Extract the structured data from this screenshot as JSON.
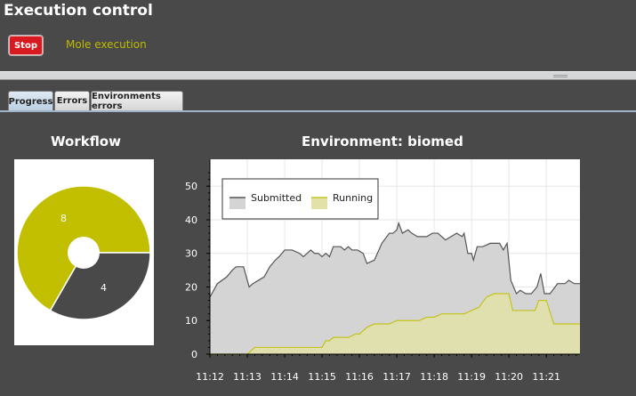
{
  "header": {
    "title": "Execution control"
  },
  "controls": {
    "stop_label": "Stop",
    "status": "Mole execution"
  },
  "tabs": [
    {
      "label": "Progress",
      "active": true
    },
    {
      "label": "Errors",
      "active": false
    },
    {
      "label": "Environments errors",
      "active": false
    }
  ],
  "workflow": {
    "title": "Workflow"
  },
  "environment": {
    "title": "Environment: biomed"
  },
  "colors": {
    "background": "#4a4949",
    "stop": "#d71920",
    "status_text": "#bdbb00",
    "submitted_fill": "#d4d4d4",
    "submitted_line": "#555555",
    "running_fill": "#e2e2a8",
    "running_line": "#c3c31c",
    "pie_yellow": "#c1bf00",
    "pie_dark": "#4a4949"
  },
  "chart_data": [
    {
      "type": "pie",
      "title": "Workflow",
      "labels": [
        "8",
        "4"
      ],
      "values": [
        8,
        4
      ],
      "colors": [
        "#c1bf00",
        "#4a4949"
      ],
      "donut": true
    },
    {
      "type": "area",
      "title": "Environment: biomed",
      "x_ticks": [
        "11:12",
        "11:13",
        "11:14",
        "11:15",
        "11:16",
        "11:17",
        "11:18",
        "11:19",
        "11:20",
        "11:21"
      ],
      "xlim": [
        0,
        9.9
      ],
      "ylim": [
        0,
        58
      ],
      "y_ticks": [
        0,
        10,
        20,
        30,
        40,
        50
      ],
      "grid": true,
      "legend": "top-left",
      "series": [
        {
          "name": "Submitted",
          "color": "#555555",
          "fill": "#d4d4d4",
          "x": [
            0,
            0.2,
            0.45,
            0.6,
            0.7,
            0.8,
            0.9,
            1.0,
            1.05,
            1.15,
            1.3,
            1.45,
            1.6,
            1.75,
            1.85,
            2.0,
            2.1,
            2.2,
            2.4,
            2.5,
            2.6,
            2.7,
            2.8,
            2.9,
            3.0,
            3.1,
            3.2,
            3.3,
            3.4,
            3.5,
            3.6,
            3.7,
            3.8,
            3.95,
            4.1,
            4.2,
            4.4,
            4.6,
            4.8,
            4.9,
            5.0,
            5.05,
            5.15,
            5.3,
            5.4,
            5.55,
            5.7,
            5.8,
            5.95,
            6.1,
            6.3,
            6.45,
            6.6,
            6.75,
            6.8,
            6.9,
            7.0,
            7.05,
            7.15,
            7.3,
            7.5,
            7.75,
            7.85,
            7.95,
            8.05,
            8.2,
            8.3,
            8.45,
            8.6,
            8.75,
            8.85,
            8.95,
            9.1,
            9.3,
            9.5,
            9.6,
            9.75,
            9.9
          ],
          "y": [
            17,
            21,
            23,
            25,
            26,
            26,
            26,
            22,
            20,
            21,
            22,
            23,
            26,
            28,
            29,
            31,
            31,
            31,
            30,
            29,
            30,
            31,
            30,
            30,
            29,
            30,
            29,
            32,
            32,
            32,
            31,
            32,
            31,
            31,
            30,
            27,
            28,
            33,
            36,
            36,
            37,
            39,
            36,
            37,
            36,
            35,
            35,
            35,
            36,
            36,
            34,
            35,
            36,
            35,
            36,
            30,
            30,
            28,
            32,
            32,
            33,
            33,
            31,
            33,
            22,
            18,
            19,
            18,
            18,
            20,
            24,
            18,
            18,
            21,
            21,
            22,
            21,
            21
          ]
        },
        {
          "name": "Running",
          "color": "#c3c31c",
          "fill": "#e2e2a8",
          "x": [
            0,
            0.45,
            0.65,
            0.7,
            1.0,
            1.2,
            1.4,
            1.6,
            1.8,
            2.0,
            2.2,
            2.4,
            2.6,
            2.8,
            3.0,
            3.1,
            3.2,
            3.3,
            3.5,
            3.7,
            3.9,
            4.0,
            4.2,
            4.4,
            4.6,
            4.8,
            5.0,
            5.1,
            5.3,
            5.6,
            5.8,
            6.0,
            6.2,
            6.4,
            6.6,
            6.8,
            7.0,
            7.2,
            7.4,
            7.6,
            7.8,
            8.0,
            8.1,
            8.3,
            8.5,
            8.7,
            8.8,
            9.0,
            9.2,
            9.4,
            9.6,
            9.9
          ],
          "y": [
            0,
            0,
            0,
            0,
            0,
            2,
            2,
            2,
            2,
            2,
            2,
            2,
            2,
            2,
            2,
            4,
            4,
            5,
            5,
            5,
            6,
            6,
            8,
            9,
            9,
            9,
            10,
            10,
            10,
            10,
            11,
            11,
            12,
            12,
            12,
            12,
            13,
            14,
            17,
            18,
            18,
            18,
            13,
            13,
            13,
            13,
            16,
            16,
            9,
            9,
            9,
            9
          ]
        }
      ]
    }
  ]
}
